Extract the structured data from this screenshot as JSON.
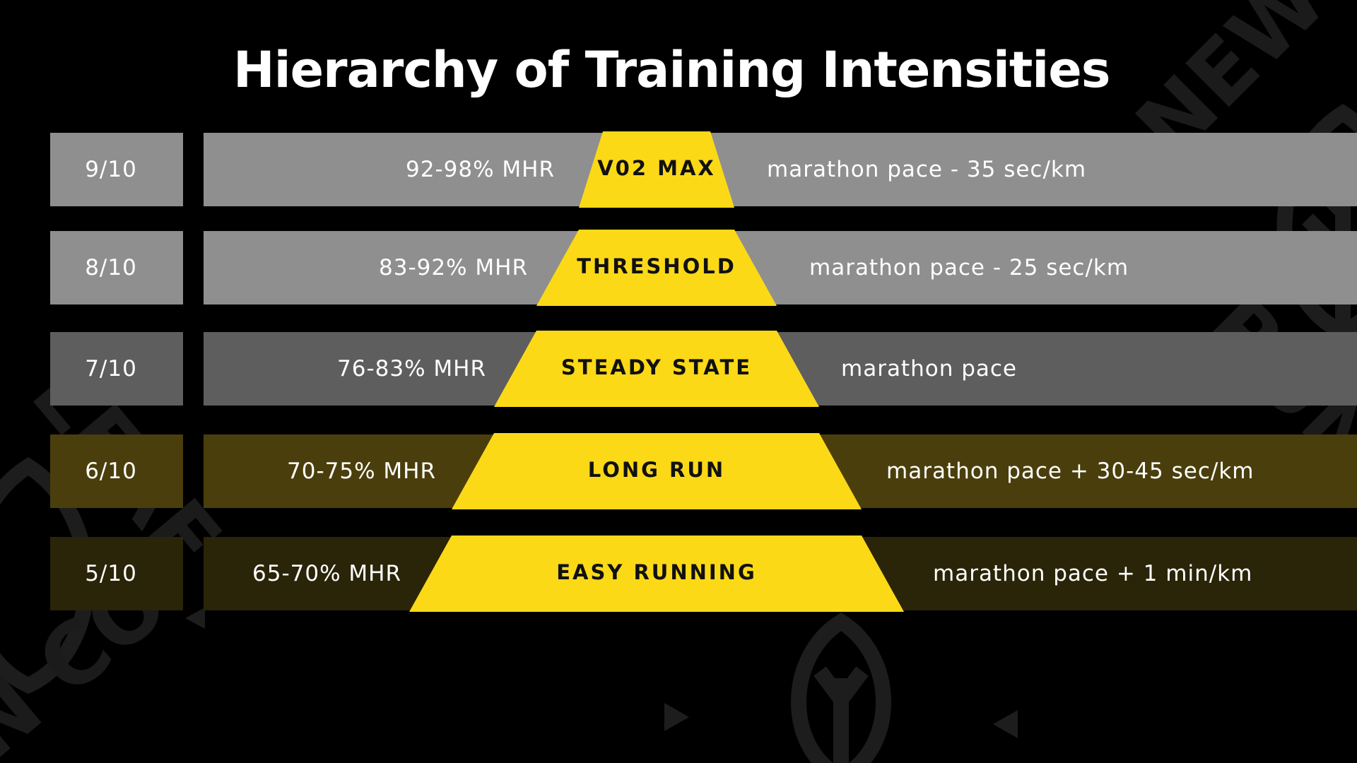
{
  "title": "Hierarchy of Training Intensities",
  "colors": {
    "background": "#000000",
    "pyramid_yellow": "#FCD917",
    "band_light_gray": "#8F8F8F",
    "band_dark_gray": "#5E5E5E",
    "band_olive": "#4A3F0C",
    "band_dark_olive": "#2A2408"
  },
  "watermark": {
    "text_top_right": "NEW LEAF",
    "text_right": "RUN",
    "text_left": "LEAF",
    "text_bottom_left": "N CO"
  },
  "levels": [
    {
      "rating": "9/10",
      "hr": "92-98% MHR",
      "zone": "V02 MAX",
      "pace": "marathon pace - 35 sec/km",
      "band_color": "#8F8F8F"
    },
    {
      "rating": "8/10",
      "hr": "83-92% MHR",
      "zone": "THRESHOLD",
      "pace": "marathon pace - 25 sec/km",
      "band_color": "#8F8F8F"
    },
    {
      "rating": "7/10",
      "hr": "76-83% MHR",
      "zone": "STEADY STATE",
      "pace": "marathon pace",
      "band_color": "#5E5E5E"
    },
    {
      "rating": "6/10",
      "hr": "70-75% MHR",
      "zone": "LONG RUN",
      "pace": "marathon pace + 30-45 sec/km",
      "band_color": "#4A3F0C"
    },
    {
      "rating": "5/10",
      "hr": "65-70% MHR",
      "zone": "EASY RUNNING",
      "pace": "marathon pace + 1 min/km",
      "band_color": "#2A2408"
    }
  ]
}
